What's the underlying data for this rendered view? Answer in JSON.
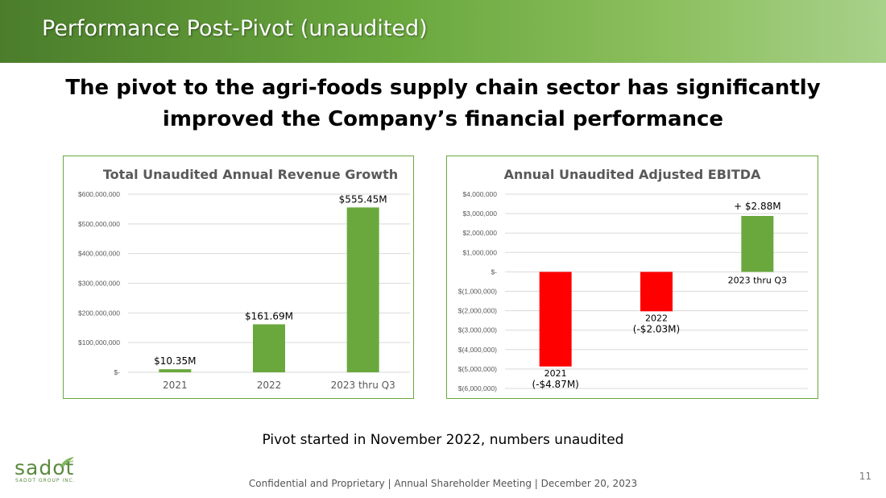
{
  "slide": {
    "title": "Performance Post-Pivot (unaudited)",
    "headline": [
      "The pivot to the agri-foods supply chain sector has significantly",
      "improved the Company’s financial performance"
    ],
    "caption": "Pivot started in November 2022, numbers unaudited",
    "footer": "Confidential and Proprietary | Annual Shareholder Meeting | December 20, 2023",
    "page_number": "11",
    "logo": {
      "word": "sadot",
      "tagline": "SADOT GROUP INC."
    }
  },
  "colors": {
    "accent": "#6aa83e",
    "negative": "#ff0000",
    "gridline": "#d9d9d9",
    "axis_text": "#595959"
  },
  "chart_data": [
    {
      "type": "bar",
      "title": "Total Unaudited Annual Revenue Growth",
      "categories": [
        "2021",
        "2022",
        "2023 thru Q3"
      ],
      "values": [
        10350000,
        161690000,
        555450000
      ],
      "data_labels": [
        "$10.35M",
        "$161.69M",
        "$555.45M"
      ],
      "bar_colors": [
        "#6aa83e",
        "#6aa83e",
        "#6aa83e"
      ],
      "ylim": [
        0,
        600000000
      ],
      "ytick_values": [
        0,
        100000000,
        200000000,
        300000000,
        400000000,
        500000000,
        600000000
      ],
      "ytick_labels": [
        "$-",
        "$100,000,000",
        "$200,000,000",
        "$300,000,000",
        "$400,000,000",
        "$500,000,000",
        "$600,000,000"
      ],
      "xlabel": "",
      "ylabel": "",
      "grid": true,
      "legend": "none"
    },
    {
      "type": "bar",
      "title": "Annual Unaudited Adjusted EBITDA",
      "categories": [
        "2021",
        "2022",
        "2023 thru Q3"
      ],
      "values": [
        -4870000,
        -2030000,
        2880000
      ],
      "data_labels": [
        "(-$4.87M)",
        "(-$2.03M)",
        "+ $2.88M"
      ],
      "bar_colors": [
        "#ff0000",
        "#ff0000",
        "#6aa83e"
      ],
      "ylim": [
        -6000000,
        4000000
      ],
      "ytick_values": [
        4000000,
        3000000,
        2000000,
        1000000,
        0,
        -1000000,
        -2000000,
        -3000000,
        -4000000,
        -5000000,
        -6000000
      ],
      "ytick_labels": [
        "$4,000,000",
        "$3,000,000",
        "$2,000,000",
        "$1,000,000",
        "$-",
        "$(1,000,000)",
        "$(2,000,000)",
        "$(3,000,000)",
        "$(4,000,000)",
        "$(5,000,000)",
        "$(6,000,000)"
      ],
      "xlabel": "",
      "ylabel": "",
      "grid": true,
      "legend": "none"
    }
  ]
}
